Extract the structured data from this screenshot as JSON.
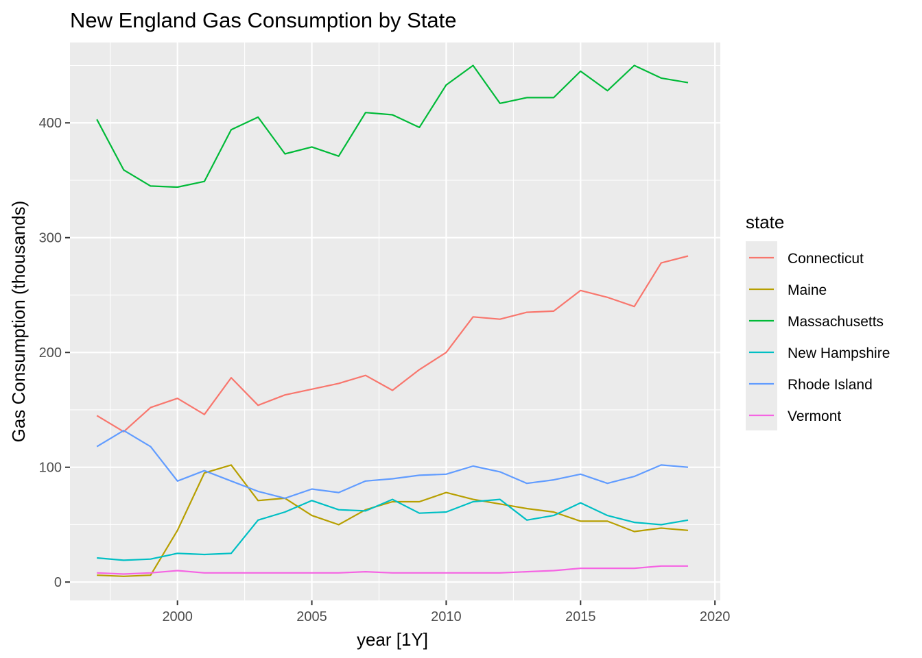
{
  "chart_data": {
    "type": "line",
    "title": "New England Gas Consumption by State",
    "xlabel": "year [1Y]",
    "ylabel": "Gas Consumption (thousands)",
    "xlim": [
      1996,
      2020.2
    ],
    "ylim": [
      -16,
      470
    ],
    "x_ticks": [
      2000,
      2005,
      2010,
      2015,
      2020
    ],
    "x_tick_labels": [
      "2000",
      "2005",
      "2010",
      "2015",
      "2020"
    ],
    "y_ticks": [
      0,
      100,
      200,
      300,
      400
    ],
    "y_tick_labels": [
      "0",
      "100",
      "200",
      "300",
      "400"
    ],
    "grid": true,
    "legend_title": "state",
    "legend_position": "right",
    "x": [
      1997,
      1998,
      1999,
      2000,
      2001,
      2002,
      2003,
      2004,
      2005,
      2006,
      2007,
      2008,
      2009,
      2010,
      2011,
      2012,
      2013,
      2014,
      2015,
      2016,
      2017,
      2018,
      2019
    ],
    "series": [
      {
        "name": "Connecticut",
        "color": "#F8766D",
        "values": [
          145,
          131,
          152,
          160,
          146,
          178,
          154,
          163,
          168,
          173,
          180,
          167,
          185,
          200,
          231,
          229,
          235,
          236,
          254,
          248,
          240,
          278,
          284
        ]
      },
      {
        "name": "Maine",
        "color": "#B79F00",
        "values": [
          6,
          5,
          6,
          45,
          95,
          102,
          71,
          73,
          58,
          50,
          63,
          70,
          70,
          78,
          72,
          68,
          64,
          61,
          53,
          53,
          44,
          47,
          45
        ]
      },
      {
        "name": "Massachusetts",
        "color": "#00BA38",
        "values": [
          403,
          359,
          345,
          344,
          349,
          394,
          405,
          373,
          379,
          371,
          409,
          407,
          396,
          433,
          450,
          417,
          422,
          422,
          445,
          428,
          450,
          439,
          435
        ]
      },
      {
        "name": "New Hampshire",
        "color": "#00BFC4",
        "values": [
          21,
          19,
          20,
          25,
          24,
          25,
          54,
          61,
          71,
          63,
          62,
          72,
          60,
          61,
          70,
          72,
          54,
          58,
          69,
          58,
          52,
          50,
          54
        ]
      },
      {
        "name": "Rhode Island",
        "color": "#619CFF",
        "values": [
          118,
          132,
          118,
          88,
          97,
          88,
          79,
          73,
          81,
          78,
          88,
          90,
          93,
          94,
          101,
          96,
          86,
          89,
          94,
          86,
          92,
          102,
          100
        ]
      },
      {
        "name": "Vermont",
        "color": "#F564E3",
        "values": [
          8,
          7,
          8,
          10,
          8,
          8,
          8,
          8,
          8,
          8,
          9,
          8,
          8,
          8,
          8,
          8,
          9,
          10,
          12,
          12,
          12,
          14,
          14
        ]
      }
    ]
  }
}
